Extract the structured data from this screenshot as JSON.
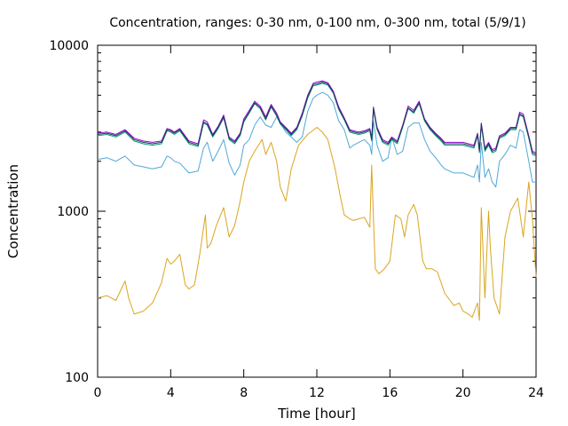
{
  "chart_data": {
    "type": "line",
    "title": "Concentration, ranges: 0-30 nm, 0-100 nm, 0-300 nm, total (5/9/1)",
    "xlabel": "Time [hour]",
    "ylabel": "Concentration",
    "xlim": [
      0,
      24
    ],
    "ylim": [
      100,
      10000
    ],
    "yscale": "log",
    "grid": false,
    "legend": "none",
    "x_ticks": [
      0,
      4,
      8,
      12,
      16,
      20,
      24
    ],
    "x_tick_labels": [
      "0",
      "4",
      "8",
      "12",
      "16",
      "20",
      "24"
    ],
    "y_ticks": [
      100,
      1000,
      10000
    ],
    "y_tick_labels": [
      "100",
      "1000",
      "10000"
    ],
    "series": [
      {
        "color": "#DAA520",
        "x": [
          0,
          0.5,
          1,
          1.5,
          1.7,
          2,
          2.5,
          3,
          3.5,
          3.8,
          4,
          4.2,
          4.5,
          4.8,
          5,
          5.3,
          5.6,
          5.9,
          6,
          6.2,
          6.5,
          6.9,
          7.2,
          7.5,
          7.8,
          8,
          8.3,
          8.6,
          9,
          9.2,
          9.5,
          9.8,
          10,
          10.3,
          10.6,
          11,
          11.5,
          12,
          12.3,
          12.6,
          13,
          13.3,
          13.5,
          13.8,
          14,
          14.3,
          14.6,
          14.9,
          15,
          15.1,
          15.2,
          15.4,
          15.7,
          16,
          16.3,
          16.6,
          16.8,
          17,
          17.3,
          17.5,
          17.8,
          18,
          18.3,
          18.6,
          19,
          19.5,
          19.8,
          20,
          20.3,
          20.5,
          20.8,
          20.9,
          21,
          21.2,
          21.4,
          21.5,
          21.7,
          22,
          22.3,
          22.6,
          23,
          23.3,
          23.6,
          23.8,
          24
        ],
        "y": [
          300,
          310,
          290,
          380,
          300,
          240,
          250,
          280,
          370,
          520,
          480,
          500,
          550,
          360,
          340,
          360,
          560,
          950,
          600,
          640,
          820,
          1050,
          700,
          820,
          1150,
          1500,
          2000,
          2300,
          2700,
          2200,
          2600,
          2000,
          1400,
          1150,
          1800,
          2500,
          2900,
          3200,
          3000,
          2700,
          1800,
          1200,
          950,
          900,
          880,
          900,
          920,
          800,
          1900,
          900,
          450,
          420,
          450,
          500,
          950,
          900,
          700,
          950,
          1100,
          950,
          500,
          450,
          450,
          430,
          320,
          270,
          280,
          250,
          240,
          230,
          280,
          220,
          1050,
          300,
          1000,
          600,
          300,
          240,
          700,
          1000,
          1200,
          700,
          1500,
          900,
          400
        ]
      },
      {
        "color": "#4FA8D8",
        "x": [
          0,
          0.5,
          1,
          1.5,
          2,
          2.5,
          3,
          3.5,
          3.8,
          4,
          4.2,
          4.5,
          5,
          5.5,
          5.8,
          6,
          6.3,
          6.6,
          6.9,
          7.2,
          7.5,
          7.8,
          8,
          8.3,
          8.6,
          8.9,
          9.2,
          9.5,
          9.8,
          10,
          10.3,
          10.6,
          10.9,
          11.2,
          11.5,
          11.8,
          12,
          12.3,
          12.6,
          12.9,
          13.2,
          13.5,
          13.8,
          14,
          14.3,
          14.6,
          14.9,
          15,
          15.1,
          15.3,
          15.6,
          15.9,
          16.1,
          16.4,
          16.7,
          17,
          17.3,
          17.6,
          17.9,
          18.2,
          18.5,
          18.8,
          19,
          19.5,
          20,
          20.3,
          20.6,
          20.8,
          20.9,
          21,
          21.2,
          21.4,
          21.6,
          21.8,
          22,
          22.3,
          22.6,
          22.9,
          23.1,
          23.3,
          23.6,
          23.8,
          24
        ],
        "y": [
          2050,
          2100,
          2000,
          2150,
          1900,
          1850,
          1800,
          1850,
          2150,
          2100,
          2000,
          1950,
          1700,
          1750,
          2400,
          2600,
          2000,
          2300,
          2700,
          1950,
          1650,
          1900,
          2500,
          2700,
          3300,
          3700,
          3300,
          3200,
          3700,
          3400,
          3000,
          2800,
          2600,
          2800,
          4000,
          4800,
          5000,
          5200,
          5000,
          4500,
          3500,
          3100,
          2400,
          2500,
          2600,
          2700,
          2500,
          2200,
          3500,
          2500,
          2000,
          2100,
          2800,
          2200,
          2300,
          3200,
          3400,
          3400,
          2700,
          2300,
          2100,
          1900,
          1800,
          1700,
          1700,
          1650,
          1600,
          1900,
          1500,
          2600,
          1600,
          1800,
          1500,
          1400,
          2000,
          2200,
          2500,
          2400,
          3100,
          3000,
          2000,
          1500,
          1500
        ]
      },
      {
        "color": "#009E73",
        "x": [
          0,
          0.5,
          1,
          1.5,
          2,
          2.5,
          3,
          3.5,
          3.8,
          4,
          4.2,
          4.5,
          5,
          5.5,
          5.8,
          6,
          6.3,
          6.6,
          6.9,
          7.2,
          7.5,
          7.8,
          8,
          8.3,
          8.6,
          8.9,
          9.2,
          9.5,
          9.8,
          10,
          10.3,
          10.6,
          10.9,
          11.2,
          11.5,
          11.8,
          12,
          12.3,
          12.6,
          12.9,
          13.2,
          13.5,
          13.8,
          14,
          14.3,
          14.6,
          14.9,
          15,
          15.1,
          15.3,
          15.6,
          15.9,
          16.1,
          16.4,
          16.7,
          17,
          17.3,
          17.6,
          17.9,
          18.2,
          18.5,
          18.8,
          19,
          19.5,
          20,
          20.3,
          20.6,
          20.8,
          20.9,
          21,
          21.2,
          21.4,
          21.6,
          21.8,
          22,
          22.3,
          22.6,
          22.9,
          23.1,
          23.3,
          23.6,
          23.8,
          24
        ],
        "y": [
          2850,
          2900,
          2800,
          3000,
          2650,
          2550,
          2500,
          2550,
          3050,
          3000,
          2900,
          3050,
          2550,
          2450,
          3400,
          3300,
          2800,
          3150,
          3650,
          2700,
          2550,
          2850,
          3450,
          3900,
          4450,
          4150,
          3550,
          4250,
          3750,
          3350,
          3100,
          2850,
          3100,
          3750,
          4800,
          5700,
          5750,
          5900,
          5750,
          5150,
          4100,
          3550,
          3000,
          2950,
          2900,
          2950,
          3050,
          2650,
          4100,
          3100,
          2600,
          2500,
          2700,
          2550,
          3200,
          4150,
          3900,
          4450,
          3500,
          3100,
          2850,
          2650,
          2500,
          2500,
          2500,
          2450,
          2400,
          2850,
          2250,
          3300,
          2300,
          2500,
          2250,
          2300,
          2750,
          2850,
          3100,
          3100,
          3800,
          3700,
          2750,
          2200,
          2150
        ]
      },
      {
        "color": "#9400D3",
        "x": [
          0,
          0.5,
          1,
          1.5,
          2,
          2.5,
          3,
          3.5,
          3.8,
          4,
          4.2,
          4.5,
          5,
          5.5,
          5.8,
          6,
          6.3,
          6.6,
          6.9,
          7.2,
          7.5,
          7.8,
          8,
          8.3,
          8.6,
          8.9,
          9.2,
          9.5,
          9.8,
          10,
          10.3,
          10.6,
          10.9,
          11.2,
          11.5,
          11.8,
          12,
          12.3,
          12.6,
          12.9,
          13.2,
          13.5,
          13.8,
          14,
          14.3,
          14.6,
          14.9,
          15,
          15.1,
          15.3,
          15.6,
          15.9,
          16.1,
          16.4,
          16.7,
          17,
          17.3,
          17.6,
          17.9,
          18.2,
          18.5,
          18.8,
          19,
          19.5,
          20,
          20.3,
          20.6,
          20.8,
          20.9,
          21,
          21.2,
          21.4,
          21.6,
          21.8,
          22,
          22.3,
          22.6,
          22.9,
          23.1,
          23.3,
          23.6,
          23.8,
          24
        ],
        "y": [
          2950,
          3000,
          2900,
          3100,
          2750,
          2650,
          2600,
          2650,
          3150,
          3100,
          3000,
          3150,
          2650,
          2550,
          3550,
          3450,
          2900,
          3250,
          3800,
          2800,
          2650,
          2950,
          3600,
          4050,
          4600,
          4300,
          3700,
          4400,
          3900,
          3450,
          3200,
          2950,
          3200,
          3900,
          5000,
          5900,
          6000,
          6100,
          5950,
          5300,
          4250,
          3650,
          3100,
          3050,
          3000,
          3050,
          3150,
          2750,
          4250,
          3200,
          2700,
          2600,
          2800,
          2650,
          3300,
          4300,
          4050,
          4600,
          3600,
          3200,
          2950,
          2750,
          2600,
          2600,
          2600,
          2550,
          2500,
          2950,
          2350,
          3400,
          2400,
          2600,
          2350,
          2400,
          2850,
          2950,
          3200,
          3200,
          3950,
          3850,
          2850,
          2300,
          2250
        ]
      },
      {
        "color": "#1F3B5A",
        "x": [
          0,
          0.5,
          1,
          1.5,
          2,
          2.5,
          3,
          3.5,
          3.8,
          4,
          4.2,
          4.5,
          5,
          5.5,
          5.8,
          6,
          6.3,
          6.6,
          6.9,
          7.2,
          7.5,
          7.8,
          8,
          8.3,
          8.6,
          8.9,
          9.2,
          9.5,
          9.8,
          10,
          10.3,
          10.6,
          10.9,
          11.2,
          11.5,
          11.8,
          12,
          12.3,
          12.6,
          12.9,
          13.2,
          13.5,
          13.8,
          14,
          14.3,
          14.6,
          14.9,
          15,
          15.1,
          15.3,
          15.6,
          15.9,
          16.1,
          16.4,
          16.7,
          17,
          17.3,
          17.6,
          17.9,
          18.2,
          18.5,
          18.8,
          19,
          19.5,
          20,
          20.3,
          20.6,
          20.8,
          20.9,
          21,
          21.2,
          21.4,
          21.6,
          21.8,
          22,
          22.3,
          22.6,
          22.9,
          23.1,
          23.3,
          23.6,
          23.8,
          24
        ],
        "y": [
          2900,
          2950,
          2850,
          3050,
          2700,
          2600,
          2550,
          2600,
          3100,
          3050,
          2950,
          3100,
          2600,
          2500,
          3450,
          3350,
          2850,
          3200,
          3700,
          2750,
          2600,
          2900,
          3500,
          3950,
          4500,
          4200,
          3600,
          4300,
          3800,
          3400,
          3150,
          2900,
          3150,
          3800,
          4900,
          5800,
          5850,
          6000,
          5850,
          5200,
          4150,
          3600,
          3050,
          3000,
          2950,
          3000,
          3100,
          2700,
          4150,
          3150,
          2650,
          2550,
          2750,
          2600,
          3250,
          4200,
          3950,
          4500,
          3550,
          3150,
          2900,
          2700,
          2550,
          2550,
          2550,
          2500,
          2450,
          2900,
          2300,
          3350,
          2350,
          2550,
          2300,
          2350,
          2800,
          2900,
          3150,
          3150,
          3850,
          3750,
          2800,
          2250,
          2200
        ]
      }
    ]
  }
}
